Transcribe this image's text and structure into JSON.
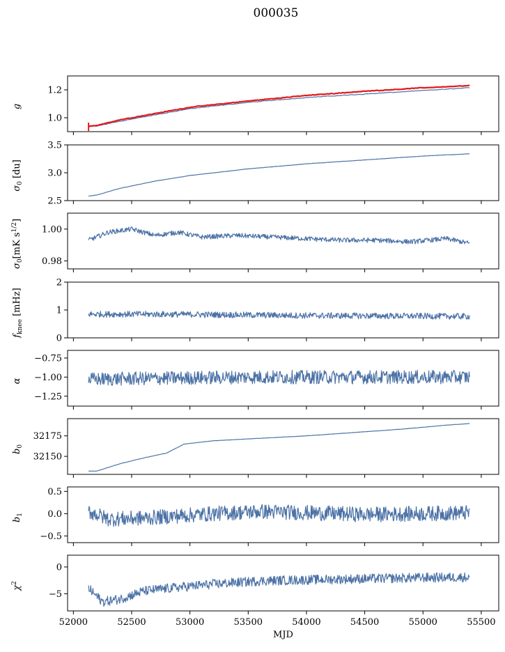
{
  "figure": {
    "title": "000035"
  },
  "chart_data": [
    {
      "type": "line",
      "ylabel": "g",
      "xlim": [
        51950,
        55650
      ],
      "ylim": [
        0.9,
        1.3
      ],
      "yticks": [
        1.0,
        1.2
      ],
      "ytick_labels": [
        "1.0",
        "1.2"
      ],
      "series": [
        {
          "color": "#4c72a6",
          "x": [
            52130,
            52200,
            52400,
            52700,
            53000,
            53500,
            54000,
            54500,
            55000,
            55400
          ],
          "values": [
            0.935,
            0.94,
            0.975,
            1.02,
            1.065,
            1.11,
            1.145,
            1.17,
            1.195,
            1.215
          ]
        },
        {
          "color": "#e41a1c",
          "x": [
            52130,
            52200,
            52400,
            52700,
            53000,
            53500,
            54000,
            54500,
            55000,
            55400
          ],
          "values": [
            0.94,
            0.945,
            0.985,
            1.03,
            1.075,
            1.12,
            1.16,
            1.19,
            1.215,
            1.23
          ]
        }
      ]
    },
    {
      "type": "line",
      "ylabel": "σ0 [du]",
      "xlim": [
        51950,
        55650
      ],
      "ylim": [
        2.5,
        3.5
      ],
      "yticks": [
        2.5,
        3.0,
        3.5
      ],
      "ytick_labels": [
        "2.5",
        "3.0",
        "3.5"
      ],
      "series": [
        {
          "color": "#4c72a6",
          "x": [
            52130,
            52200,
            52400,
            52700,
            53000,
            53500,
            54000,
            54500,
            55000,
            55400
          ],
          "values": [
            2.58,
            2.6,
            2.72,
            2.85,
            2.95,
            3.07,
            3.16,
            3.23,
            3.3,
            3.34
          ]
        }
      ]
    },
    {
      "type": "line",
      "ylabel": "σ0[mK s^1/2]",
      "xlim": [
        51950,
        55650
      ],
      "ylim": [
        0.975,
        1.01
      ],
      "yticks": [
        0.98,
        1.0
      ],
      "ytick_labels": [
        "0.98",
        "1.00"
      ],
      "series": [
        {
          "color": "#4c72a6",
          "x": [
            52130,
            52300,
            52500,
            52700,
            52900,
            53100,
            53400,
            53700,
            54000,
            54300,
            54600,
            54900,
            55200,
            55400
          ],
          "values": [
            0.993,
            0.998,
            1.0,
            0.996,
            0.998,
            0.995,
            0.996,
            0.995,
            0.994,
            0.993,
            0.993,
            0.992,
            0.994,
            0.991
          ]
        }
      ]
    },
    {
      "type": "line",
      "ylabel": "f_knee [mHz]",
      "xlim": [
        51950,
        55650
      ],
      "ylim": [
        0,
        2
      ],
      "yticks": [
        0,
        1,
        2
      ],
      "ytick_labels": [
        "0",
        "1",
        "2"
      ],
      "series": [
        {
          "color": "#4c72a6",
          "x": [
            52130,
            52500,
            53000,
            53500,
            54000,
            54500,
            55000,
            55400
          ],
          "values": [
            0.85,
            0.85,
            0.84,
            0.82,
            0.8,
            0.79,
            0.78,
            0.77
          ]
        }
      ]
    },
    {
      "type": "line",
      "ylabel": "α",
      "xlim": [
        51950,
        55650
      ],
      "ylim": [
        -1.38,
        -0.65
      ],
      "yticks": [
        -1.25,
        -1.0,
        -0.75
      ],
      "ytick_labels": [
        "−1.25",
        "−1.00",
        "−0.75"
      ],
      "series": [
        {
          "color": "#4c72a6",
          "x": [
            52130,
            52500,
            53000,
            53500,
            54000,
            54500,
            55000,
            55400
          ],
          "values": [
            -1.03,
            -1.02,
            -1.01,
            -1.0,
            -1.0,
            -1.0,
            -1.0,
            -1.0
          ]
        }
      ]
    },
    {
      "type": "line",
      "ylabel": "b0",
      "xlim": [
        51950,
        55650
      ],
      "ylim": [
        32128,
        32196
      ],
      "yticks": [
        32150,
        32175
      ],
      "ytick_labels": [
        "32150",
        "32175"
      ],
      "series": [
        {
          "color": "#4c72a6",
          "x": [
            52130,
            52200,
            52400,
            52600,
            52800,
            52950,
            53200,
            53600,
            54000,
            54400,
            54800,
            55200,
            55400
          ],
          "values": [
            32132,
            32132,
            32141,
            32148,
            32154,
            32165,
            32169,
            32172,
            32175,
            32179,
            32183,
            32188,
            32190
          ]
        }
      ]
    },
    {
      "type": "line",
      "ylabel": "b1",
      "xlim": [
        51950,
        55650
      ],
      "ylim": [
        -0.65,
        0.6
      ],
      "yticks": [
        -0.5,
        0.0,
        0.5
      ],
      "ytick_labels": [
        "−0.5",
        "0.0",
        "0.5"
      ],
      "series": [
        {
          "color": "#4c72a6",
          "x": [
            52130,
            52300,
            52600,
            52900,
            53200,
            53600,
            54000,
            54500,
            55000,
            55400
          ],
          "values": [
            0.05,
            -0.12,
            -0.1,
            -0.05,
            0.0,
            0.05,
            0.02,
            -0.02,
            0.0,
            0.02
          ]
        }
      ]
    },
    {
      "type": "line",
      "ylabel": "χ²",
      "xlabel": "MJD",
      "xlim": [
        51950,
        55650
      ],
      "ylim": [
        -8.2,
        2.2
      ],
      "yticks": [
        -5,
        0
      ],
      "ytick_labels": [
        "−5",
        "0"
      ],
      "xticks": [
        52000,
        52500,
        53000,
        53500,
        54000,
        54500,
        55000,
        55500
      ],
      "xtick_labels": [
        "52000",
        "52500",
        "53000",
        "53500",
        "54000",
        "54500",
        "55000",
        "55500"
      ],
      "series": [
        {
          "color": "#4c72a6",
          "x": [
            52130,
            52250,
            52400,
            52600,
            52900,
            53200,
            53600,
            54000,
            54500,
            55000,
            55400
          ],
          "values": [
            -4.0,
            -6.5,
            -6.0,
            -4.5,
            -3.8,
            -3.2,
            -2.6,
            -2.4,
            -2.2,
            -2.0,
            -1.9
          ]
        }
      ]
    }
  ]
}
